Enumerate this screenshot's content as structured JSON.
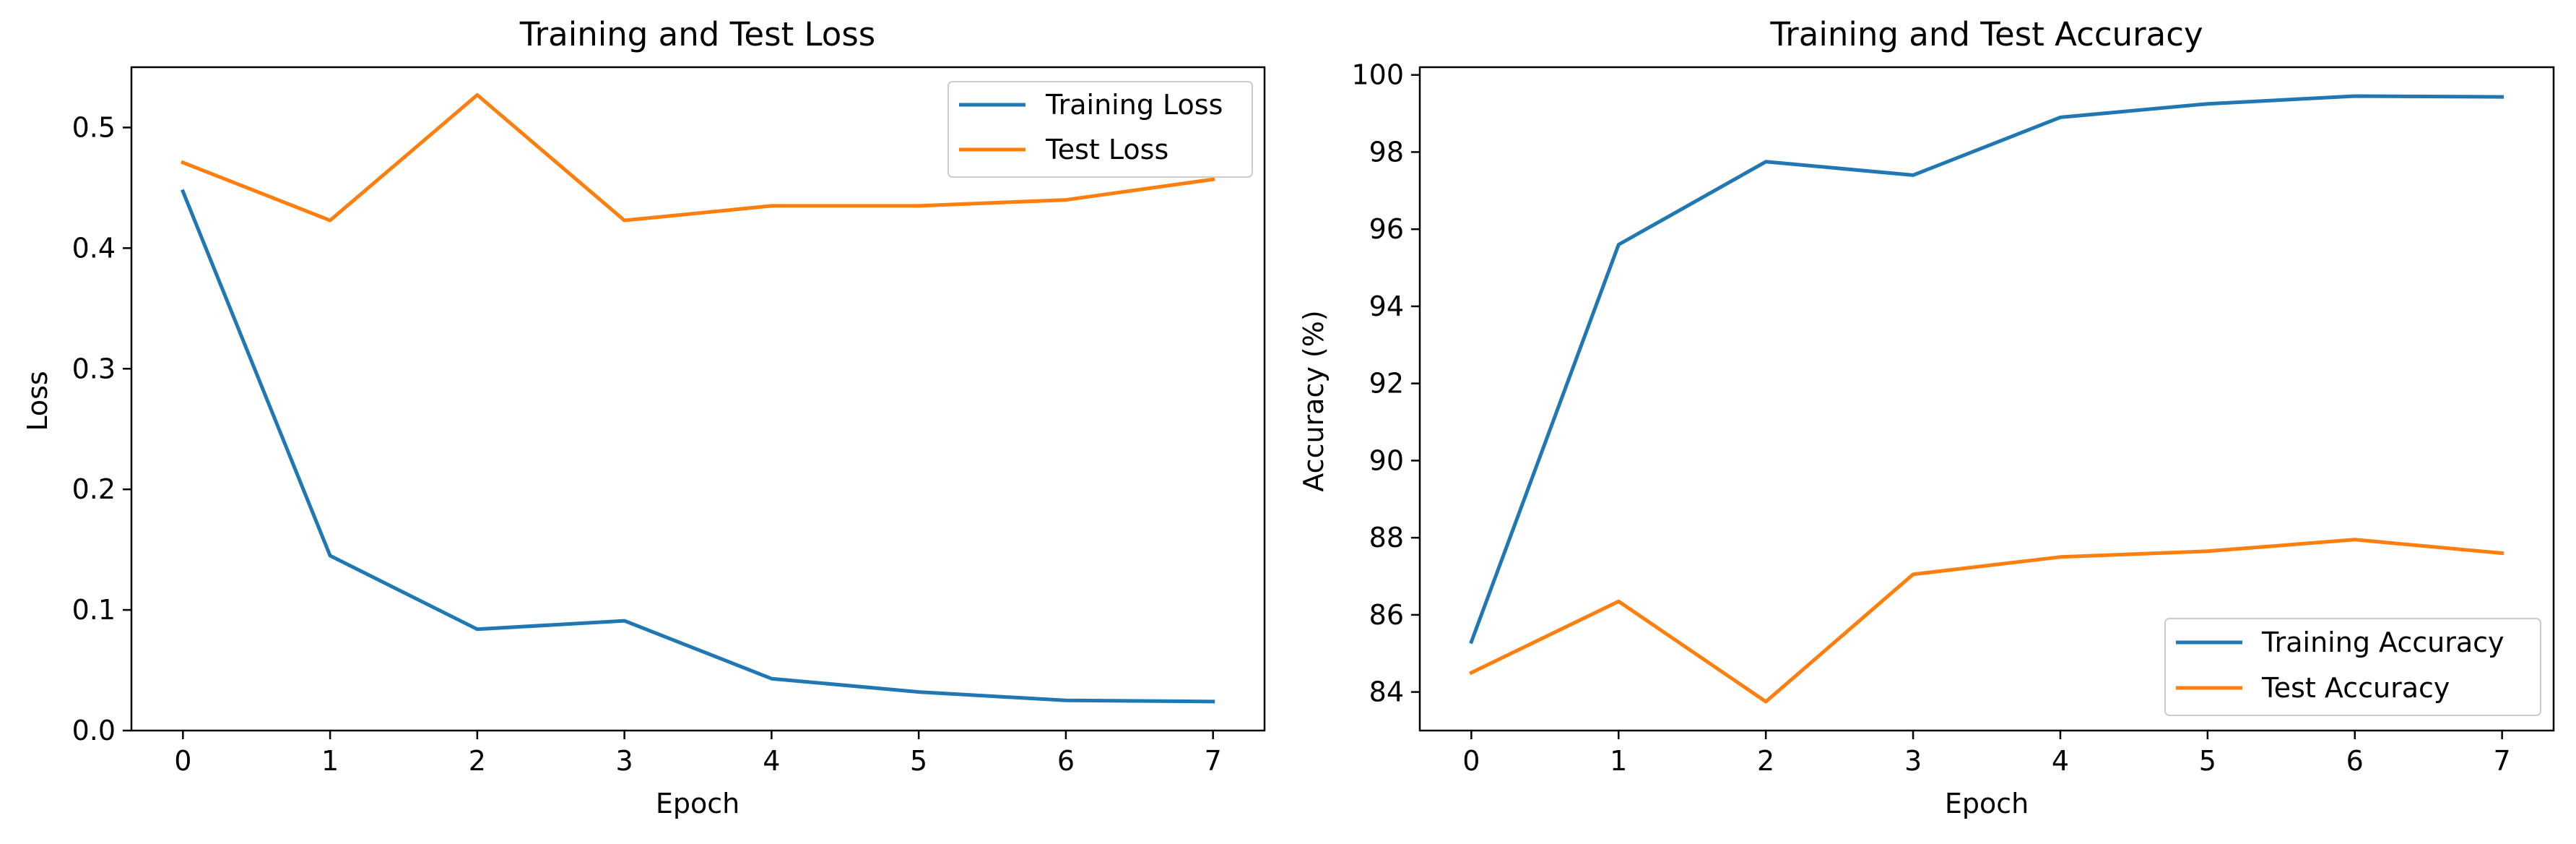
{
  "colors": {
    "series1": "#1f77b4",
    "series2": "#ff7f0e",
    "axes": "#000000",
    "legend_border": "#cccccc"
  },
  "chart_data": [
    {
      "type": "line",
      "title": "Training and Test Loss",
      "xlabel": "Epoch",
      "ylabel": "Loss",
      "x": [
        0,
        1,
        2,
        3,
        4,
        5,
        6,
        7
      ],
      "xlim": [
        -0.35,
        7.35
      ],
      "ylim": [
        0,
        0.55
      ],
      "xticks": [
        0,
        1,
        2,
        3,
        4,
        5,
        6,
        7
      ],
      "yticks": [
        0.0,
        0.1,
        0.2,
        0.3,
        0.4,
        0.5
      ],
      "xtick_labels": [
        "0",
        "1",
        "2",
        "3",
        "4",
        "5",
        "6",
        "7"
      ],
      "ytick_labels": [
        "0.0",
        "0.1",
        "0.2",
        "0.3",
        "0.4",
        "0.5"
      ],
      "grid": false,
      "legend_position": "upper right",
      "series": [
        {
          "name": "Training Loss",
          "color": "#1f77b4",
          "values": [
            0.447,
            0.145,
            0.084,
            0.091,
            0.043,
            0.032,
            0.025,
            0.024
          ]
        },
        {
          "name": "Test Loss",
          "color": "#ff7f0e",
          "values": [
            0.471,
            0.423,
            0.527,
            0.423,
            0.435,
            0.435,
            0.44,
            0.457
          ]
        }
      ]
    },
    {
      "type": "line",
      "title": "Training and Test Accuracy",
      "xlabel": "Epoch",
      "ylabel": "Accuracy (%)",
      "x": [
        0,
        1,
        2,
        3,
        4,
        5,
        6,
        7
      ],
      "xlim": [
        -0.35,
        7.35
      ],
      "ylim": [
        83.0,
        100.2
      ],
      "xticks": [
        0,
        1,
        2,
        3,
        4,
        5,
        6,
        7
      ],
      "yticks": [
        84,
        86,
        88,
        90,
        92,
        94,
        96,
        98,
        100
      ],
      "xtick_labels": [
        "0",
        "1",
        "2",
        "3",
        "4",
        "5",
        "6",
        "7"
      ],
      "ytick_labels": [
        "84",
        "86",
        "88",
        "90",
        "92",
        "94",
        "96",
        "98",
        "100"
      ],
      "grid": false,
      "legend_position": "lower right",
      "series": [
        {
          "name": "Training Accuracy",
          "color": "#1f77b4",
          "values": [
            85.3,
            95.6,
            97.75,
            97.4,
            98.9,
            99.25,
            99.45,
            99.43
          ]
        },
        {
          "name": "Test Accuracy",
          "color": "#ff7f0e",
          "values": [
            84.5,
            86.35,
            83.75,
            87.05,
            87.5,
            87.65,
            87.95,
            87.6
          ]
        }
      ]
    }
  ]
}
